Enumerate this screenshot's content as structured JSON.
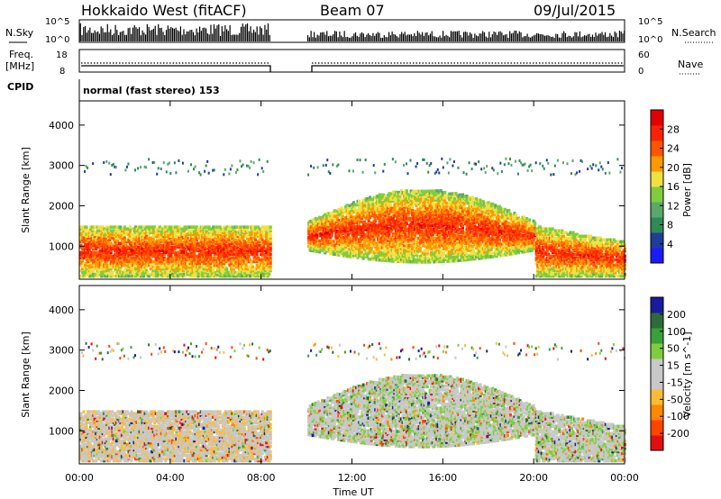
{
  "header": {
    "station": "Hokkaido West (fitACF)",
    "beam": "Beam 07",
    "date": "09/Jul/2015"
  },
  "noise_panel": {
    "left_label": "N.Sky",
    "right_label": "N.Search",
    "left_ticks": [
      "10^5",
      "10^0"
    ],
    "right_ticks": [
      "10^5",
      "10^0"
    ]
  },
  "freq_panel": {
    "left_label_line1": "Freq.",
    "left_label_line2": "[MHz]",
    "right_label": "Nave",
    "left_ticks": [
      "18",
      "8"
    ],
    "right_ticks": [
      "60",
      "0"
    ]
  },
  "cpid": {
    "label": "CPID",
    "text": "normal (fast stereo) 153"
  },
  "colors": {
    "power_scale": [
      "#1a1aff",
      "#1f3d99",
      "#2e8b57",
      "#5aa86a",
      "#7fcd3c",
      "#f0e040",
      "#ff9900",
      "#ff5500",
      "#ff2200",
      "#e00000"
    ],
    "velocity_scale": [
      "#e01010",
      "#ff4400",
      "#ff8800",
      "#ffbb33",
      "#c8c8c8",
      "#c8c8c8",
      "#7fcd3c",
      "#3aa03a",
      "#2e6b3a",
      "#1a1aa0"
    ]
  },
  "chart_data": [
    {
      "type": "heatmap",
      "name": "power",
      "ylabel": "Slant Range [km]",
      "y_ticks": [
        "1000",
        "2000",
        "3000",
        "4000"
      ],
      "ylim": [
        180,
        4600
      ],
      "colorbar_label": "Power [dB]",
      "colorbar_ticks": [
        "4",
        "8",
        "12",
        "16",
        "20",
        "24",
        "28"
      ],
      "x_ticks": [
        "00:00",
        "04:00",
        "08:00",
        "12:00",
        "16:00",
        "20:00",
        "00:00"
      ],
      "data_gap_hours": [
        8.4,
        10.0
      ],
      "echo_band_km": [
        800,
        1700
      ]
    },
    {
      "type": "heatmap",
      "name": "velocity",
      "ylabel": "Slant Range [km]",
      "y_ticks": [
        "1000",
        "2000",
        "3000",
        "4000"
      ],
      "ylim": [
        180,
        4600
      ],
      "colorbar_label": "Velocity [m s^-1]",
      "colorbar_ticks": [
        "200",
        "100",
        "50",
        "15",
        "-15",
        "-50",
        "-100",
        "-200"
      ],
      "x_ticks": [
        "00:00",
        "04:00",
        "08:00",
        "12:00",
        "16:00",
        "20:00",
        "00:00"
      ],
      "xlabel": "Time UT",
      "data_gap_hours": [
        8.4,
        10.0
      ]
    }
  ]
}
